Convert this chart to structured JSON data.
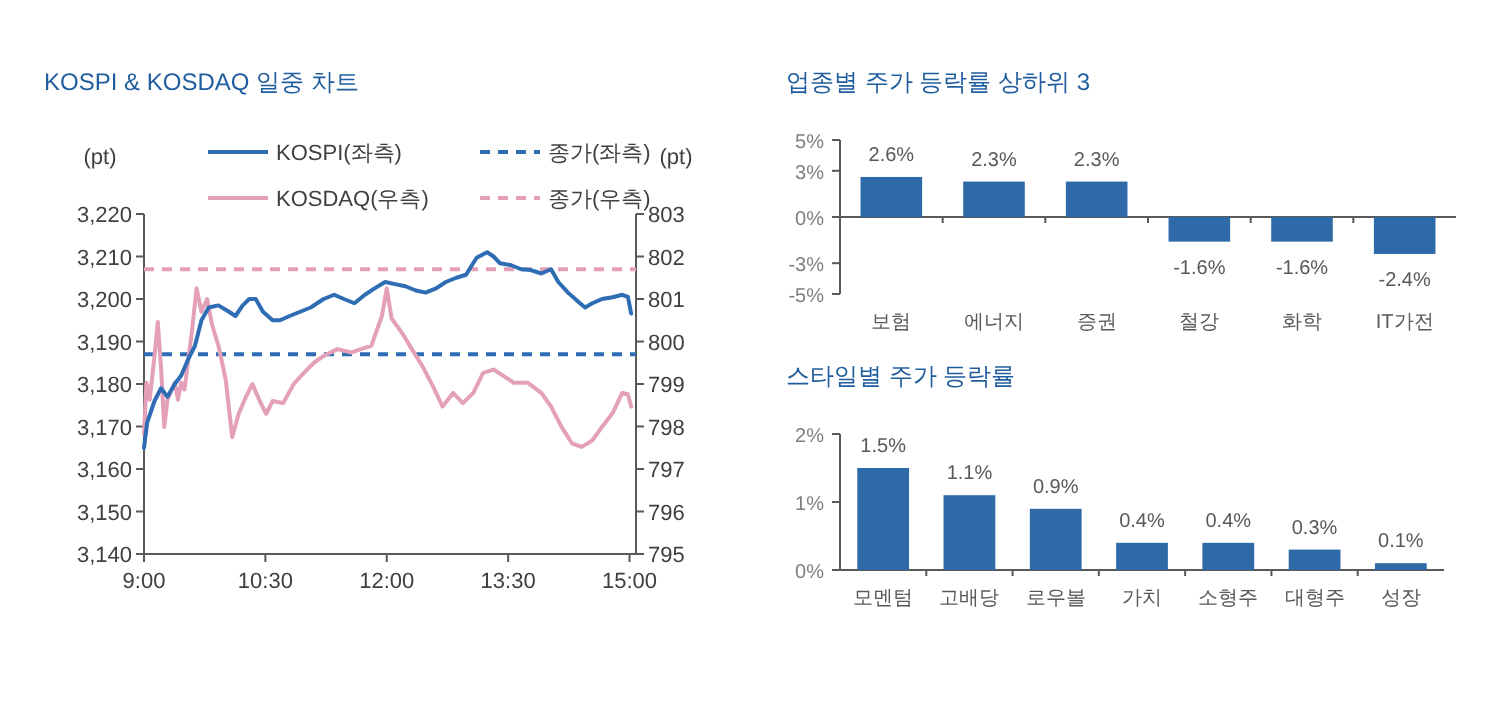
{
  "chart_data": [
    {
      "type": "line",
      "title": "KOSPI & KOSDAQ 일중 차트",
      "ylabel": "(pt)",
      "y2label": "(pt)",
      "legend": "top",
      "grid": false,
      "xlim": [
        9,
        15.08
      ],
      "xticks": [
        {
          "value": 9,
          "label": "9:00"
        },
        {
          "value": 10.5,
          "label": "10:30"
        },
        {
          "value": 12,
          "label": "12:00"
        },
        {
          "value": 13.5,
          "label": "13:30"
        },
        {
          "value": 15,
          "label": "15:00"
        }
      ],
      "ylim": [
        3140,
        3220
      ],
      "yticks": [
        {
          "value": 3140,
          "label": "3,140"
        },
        {
          "value": 3150,
          "label": "3,150"
        },
        {
          "value": 3160,
          "label": "3,160"
        },
        {
          "value": 3170,
          "label": "3,170"
        },
        {
          "value": 3180,
          "label": "3,180"
        },
        {
          "value": 3190,
          "label": "3,190"
        },
        {
          "value": 3200,
          "label": "3,200"
        },
        {
          "value": 3210,
          "label": "3,210"
        },
        {
          "value": 3220,
          "label": "3,220"
        }
      ],
      "y2lim": [
        795,
        803
      ],
      "y2ticks": [
        795,
        796,
        797,
        798,
        799,
        800,
        801,
        802,
        803
      ],
      "series": [
        {
          "name": "KOSPI(좌측)",
          "color": "#2e6db4",
          "axis": "y",
          "x": [
            9.0,
            9.04,
            9.13,
            9.21,
            9.29,
            9.38,
            9.46,
            9.55,
            9.63,
            9.71,
            9.8,
            9.92,
            10.05,
            10.13,
            10.22,
            10.3,
            10.38,
            10.47,
            10.59,
            10.68,
            10.8,
            10.93,
            11.06,
            11.22,
            11.35,
            11.47,
            11.6,
            11.73,
            11.85,
            11.98,
            12.1,
            12.23,
            12.36,
            12.48,
            12.61,
            12.73,
            12.86,
            12.98,
            13.11,
            13.24,
            13.32,
            13.4,
            13.53,
            13.66,
            13.78,
            13.91,
            14.03,
            14.12,
            14.24,
            14.37,
            14.45,
            14.54,
            14.66,
            14.79,
            14.91,
            14.98,
            15.02
          ],
          "values": [
            3165,
            3171,
            3176,
            3179,
            3177,
            3180,
            3182,
            3186,
            3189,
            3195,
            3198,
            3198.5,
            3197,
            3196,
            3198.5,
            3200,
            3200,
            3197,
            3195,
            3195,
            3196,
            3197,
            3198,
            3200,
            3201,
            3200,
            3199,
            3201,
            3202.5,
            3204,
            3203.5,
            3203,
            3202,
            3201.5,
            3202.5,
            3204,
            3205,
            3205.7,
            3209.7,
            3211,
            3210,
            3208.4,
            3208,
            3207,
            3206.8,
            3206,
            3207,
            3204,
            3201.5,
            3199.3,
            3198,
            3199,
            3200,
            3200.4,
            3201,
            3200.5,
            3196.6
          ]
        },
        {
          "name": "KOSDAQ(우측)",
          "color": "#e3a0b8",
          "axis": "y2",
          "x": [
            9.0,
            9.03,
            9.07,
            9.13,
            9.17,
            9.21,
            9.25,
            9.29,
            9.38,
            9.42,
            9.46,
            9.5,
            9.59,
            9.65,
            9.71,
            9.78,
            9.84,
            9.92,
            10.01,
            10.09,
            10.17,
            10.26,
            10.34,
            10.43,
            10.51,
            10.59,
            10.72,
            10.85,
            10.97,
            11.1,
            11.22,
            11.39,
            11.56,
            11.68,
            11.81,
            11.94,
            12.0,
            12.06,
            12.19,
            12.31,
            12.44,
            12.57,
            12.69,
            12.82,
            12.94,
            13.07,
            13.19,
            13.32,
            13.45,
            13.57,
            13.74,
            13.91,
            14.03,
            14.16,
            14.29,
            14.41,
            14.54,
            14.66,
            14.79,
            14.91,
            14.98,
            15.02
          ],
          "values": [
            797.83,
            799.03,
            798.63,
            799.66,
            800.46,
            799.4,
            797.99,
            798.63,
            799.03,
            798.63,
            799.03,
            798.87,
            800.2,
            801.25,
            800.7,
            801,
            800.4,
            799.9,
            799.1,
            797.75,
            798.3,
            798.7,
            799.0,
            798.6,
            798.3,
            798.6,
            798.55,
            799.0,
            799.25,
            799.5,
            799.66,
            799.82,
            799.74,
            799.82,
            799.9,
            800.6,
            801.25,
            800.54,
            800.2,
            799.82,
            799.42,
            798.95,
            798.47,
            798.79,
            798.55,
            798.79,
            799.26,
            799.34,
            799.18,
            799.03,
            799.03,
            798.79,
            798.47,
            797.99,
            797.6,
            797.52,
            797.67,
            797.99,
            798.31,
            798.79,
            798.76,
            798.47
          ]
        }
      ],
      "ref_lines": [
        {
          "axis": "y",
          "value": 3187,
          "label": "종가(좌측)",
          "color": "#2e6db4",
          "line_style": "dashed"
        },
        {
          "axis": "y2",
          "value": 801.7,
          "label": "종가(우측)",
          "color": "#e3a0b8",
          "line_style": "dashed"
        }
      ]
    },
    {
      "type": "bar",
      "title": "업종별 주가 등락률 상하위 3",
      "categories": [
        "보험",
        "에너지",
        "증권",
        "철강",
        "화학",
        "IT가전"
      ],
      "values": [
        2.6,
        2.3,
        2.3,
        -1.6,
        -1.6,
        -2.4
      ],
      "value_labels": [
        "2.6%",
        "2.3%",
        "2.3%",
        "-1.6%",
        "-1.6%",
        "-2.4%"
      ],
      "color": "#2e6aa8",
      "ylim": [
        -5,
        5
      ],
      "yticks": [
        {
          "value": -5,
          "label": "-5%"
        },
        {
          "value": -3,
          "label": "-3%"
        },
        {
          "value": 0,
          "label": "0%"
        },
        {
          "value": 3,
          "label": "3%"
        },
        {
          "value": 5,
          "label": "5%"
        }
      ]
    },
    {
      "type": "bar",
      "title": "스타일별 주가 등락률",
      "categories": [
        "모멘텀",
        "고배당",
        "로우볼",
        "가치",
        "소형주",
        "대형주",
        "성장"
      ],
      "values": [
        1.5,
        1.1,
        0.9,
        0.4,
        0.4,
        0.3,
        0.1
      ],
      "value_labels": [
        "1.5%",
        "1.1%",
        "0.9%",
        "0.4%",
        "0.4%",
        "0.3%",
        "0.1%"
      ],
      "color": "#2e6aa8",
      "ylim": [
        0,
        2
      ],
      "yticks": [
        {
          "value": 0,
          "label": "0%"
        },
        {
          "value": 1,
          "label": "1%"
        },
        {
          "value": 2,
          "label": "2%"
        }
      ]
    }
  ]
}
